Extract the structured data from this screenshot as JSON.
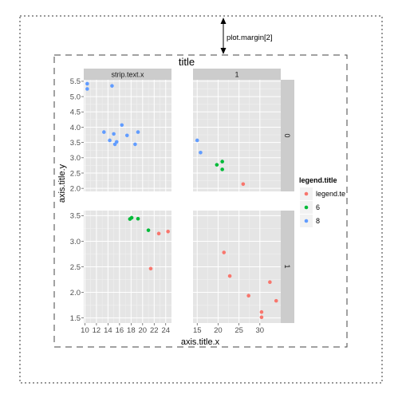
{
  "chart_data": {
    "type": "scatter",
    "title": "title",
    "xlabel": "axis.title.x",
    "ylabel": "axis.title.y",
    "legend": {
      "title": "legend.title",
      "placement": "right",
      "entries": [
        {
          "label": "legend.te",
          "color": "#f8766d"
        },
        {
          "label": "6",
          "color": "#00ba38"
        },
        {
          "label": "8",
          "color": "#619cff"
        }
      ]
    },
    "annotation": "plot.margin[2]",
    "strips": {
      "columns": [
        "strip.text.x",
        "1"
      ],
      "rows": [
        "0",
        "1"
      ]
    },
    "grid": true,
    "panels": [
      {
        "row": 0,
        "col": 0,
        "xlim": [
          9.8,
          25
        ],
        "ylim": [
          1.9,
          5.55
        ],
        "xticks": [
          10,
          12,
          14,
          16,
          18,
          20,
          22,
          24
        ],
        "yticks": [
          2.0,
          2.5,
          3.0,
          3.5,
          4.0,
          4.5,
          5.0,
          5.5
        ],
        "ytick_labels": [
          "2.0",
          "2.5",
          "3.0",
          "3.5",
          "4.0",
          "4.5",
          "5.0",
          "5.5"
        ],
        "points": [
          {
            "x": 10.4,
            "y": 5.42,
            "g": 2
          },
          {
            "x": 10.4,
            "y": 5.25,
            "g": 2
          },
          {
            "x": 14.7,
            "y": 5.35,
            "g": 2
          },
          {
            "x": 13.3,
            "y": 3.84,
            "g": 2
          },
          {
            "x": 14.3,
            "y": 3.57,
            "g": 2
          },
          {
            "x": 15.0,
            "y": 3.78,
            "g": 2
          },
          {
            "x": 15.2,
            "y": 3.44,
            "g": 2
          },
          {
            "x": 15.5,
            "y": 3.52,
            "g": 2
          },
          {
            "x": 16.4,
            "y": 4.07,
            "g": 2
          },
          {
            "x": 17.3,
            "y": 3.73,
            "g": 2
          },
          {
            "x": 18.7,
            "y": 3.44,
            "g": 2
          },
          {
            "x": 19.2,
            "y": 3.84,
            "g": 2
          }
        ]
      },
      {
        "row": 0,
        "col": 1,
        "xlim": [
          14,
          35
        ],
        "ylim": [
          1.9,
          5.55
        ],
        "xticks": [
          15,
          20,
          25,
          30
        ],
        "yticks": [
          2.0,
          2.5,
          3.0,
          3.5,
          4.0,
          4.5,
          5.0,
          5.5
        ],
        "ytick_labels": [
          "2.0",
          "2.5",
          "3.0",
          "3.5",
          "4.0",
          "4.5",
          "5.0",
          "5.5"
        ],
        "points": [
          {
            "x": 15.0,
            "y": 3.57,
            "g": 2
          },
          {
            "x": 15.8,
            "y": 3.17,
            "g": 2
          },
          {
            "x": 19.7,
            "y": 2.77,
            "g": 1
          },
          {
            "x": 21.0,
            "y": 2.875,
            "g": 1
          },
          {
            "x": 21.0,
            "y": 2.62,
            "g": 1
          },
          {
            "x": 26.0,
            "y": 2.14,
            "g": 0
          }
        ]
      },
      {
        "row": 1,
        "col": 0,
        "xlim": [
          9.8,
          25
        ],
        "ylim": [
          1.4,
          3.6
        ],
        "xticks": [
          10,
          12,
          14,
          16,
          18,
          20,
          22,
          24
        ],
        "yticks": [
          1.5,
          2.0,
          2.5,
          3.0,
          3.5
        ],
        "ytick_labels": [
          "1.5",
          "2.0",
          "2.5",
          "3.0",
          "3.5"
        ],
        "points": [
          {
            "x": 17.8,
            "y": 3.435,
            "g": 1
          },
          {
            "x": 18.1,
            "y": 3.46,
            "g": 1
          },
          {
            "x": 19.2,
            "y": 3.44,
            "g": 1
          },
          {
            "x": 21.0,
            "y": 3.215,
            "g": 1
          },
          {
            "x": 21.4,
            "y": 2.465,
            "g": 0
          },
          {
            "x": 22.8,
            "y": 3.15,
            "g": 0
          },
          {
            "x": 24.4,
            "y": 3.19,
            "g": 0
          }
        ]
      },
      {
        "row": 1,
        "col": 1,
        "xlim": [
          14,
          35
        ],
        "ylim": [
          1.4,
          3.6
        ],
        "xticks": [
          15,
          20,
          25,
          30
        ],
        "yticks": [
          1.5,
          2.0,
          2.5,
          3.0,
          3.5
        ],
        "ytick_labels": [
          "1.5",
          "2.0",
          "2.5",
          "3.0",
          "3.5"
        ],
        "points": [
          {
            "x": 21.4,
            "y": 2.78,
            "g": 0
          },
          {
            "x": 22.8,
            "y": 2.32,
            "g": 0
          },
          {
            "x": 27.3,
            "y": 1.935,
            "g": 0
          },
          {
            "x": 30.4,
            "y": 1.615,
            "g": 0
          },
          {
            "x": 30.4,
            "y": 1.513,
            "g": 0
          },
          {
            "x": 32.4,
            "y": 2.2,
            "g": 0
          },
          {
            "x": 33.9,
            "y": 1.835,
            "g": 0
          }
        ]
      }
    ]
  }
}
